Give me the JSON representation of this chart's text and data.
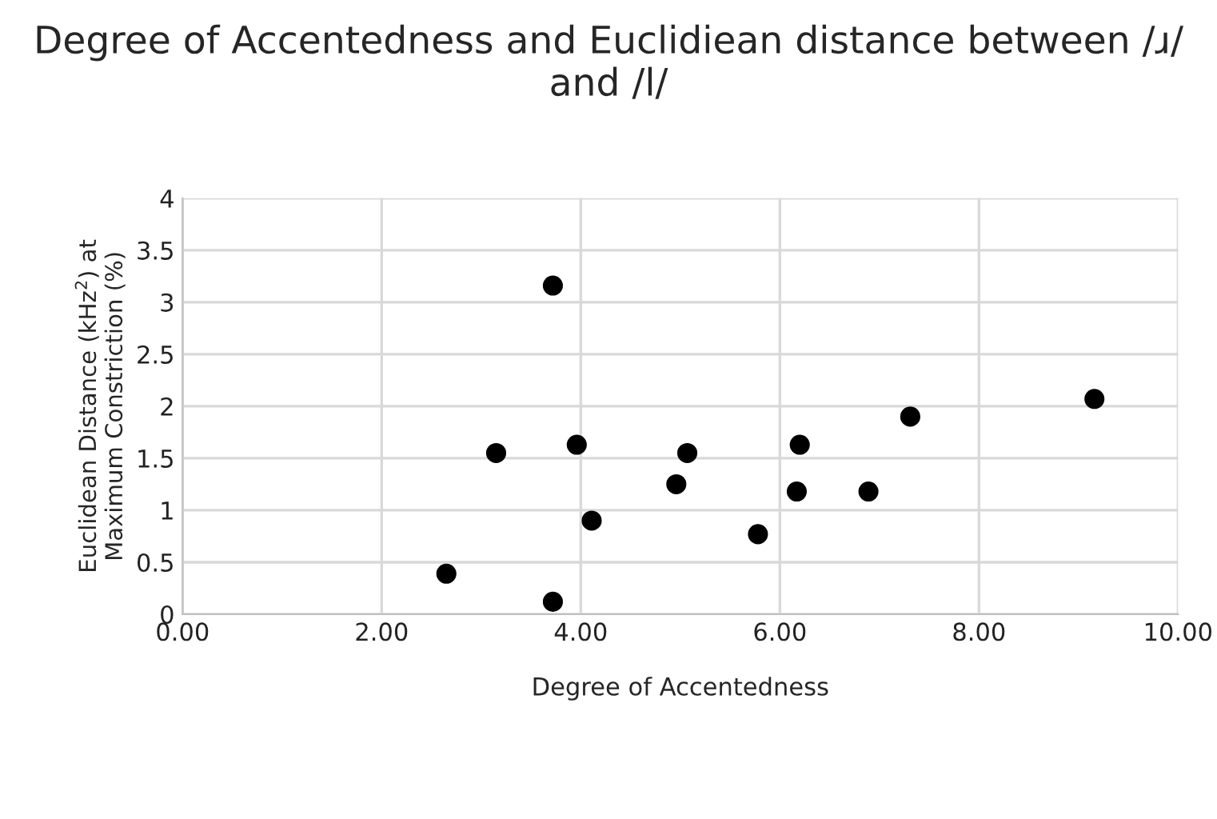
{
  "chart_data": {
    "type": "scatter",
    "title": "Degree of Accentedness and Euclidiean distance between /ɹ/ and /l/",
    "xlabel": "Degree of Accentedness",
    "ylabel": "Euclidean Distance (kHz$^{2}$) at\nMaximum Constriction (%)",
    "x": [
      3.72,
      9.16,
      7.31,
      3.15,
      3.96,
      5.07,
      6.2,
      4.96,
      6.17,
      6.89,
      4.11,
      5.78,
      2.65,
      3.72
    ],
    "series": [
      {
        "color": "#000000",
        "values": [
          3.16,
          2.07,
          1.9,
          1.55,
          1.63,
          1.55,
          1.63,
          1.25,
          1.18,
          1.18,
          0.9,
          0.77,
          0.39,
          0.12
        ]
      }
    ],
    "xlim": [
      0,
      10
    ],
    "xticks": [
      {
        "value": 0,
        "label": "0.00"
      },
      {
        "value": 2,
        "label": "2.00"
      },
      {
        "value": 4,
        "label": "4.00"
      },
      {
        "value": 6,
        "label": "6.00"
      },
      {
        "value": 8,
        "label": "8.00"
      },
      {
        "value": 10,
        "label": "10.00"
      }
    ],
    "ylim": [
      0,
      4
    ],
    "yticks": [
      0,
      0.5,
      1,
      1.5,
      2,
      2.5,
      3,
      3.5,
      4
    ],
    "grid": true,
    "marker": "circle"
  }
}
